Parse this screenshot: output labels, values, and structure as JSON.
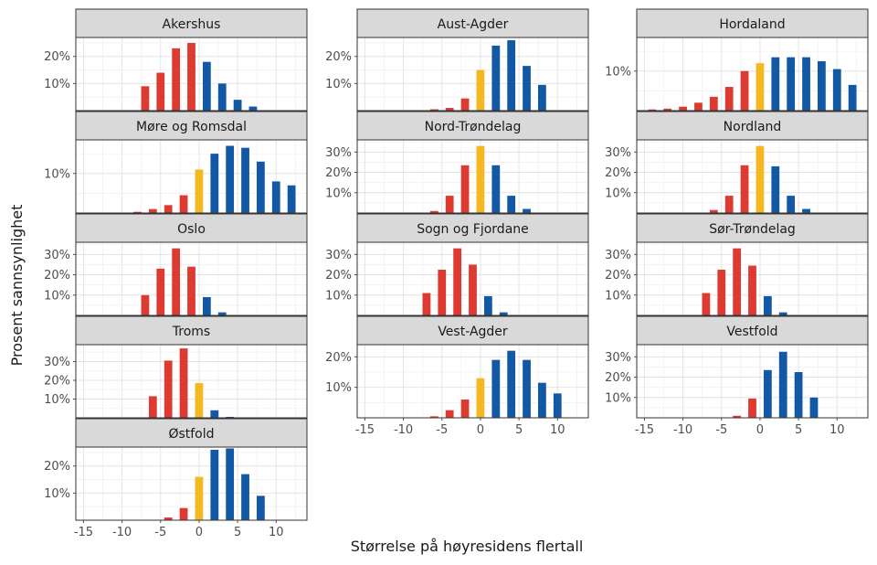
{
  "chart_data": {
    "type": "bar",
    "layout": "faceted grid, 3 columns",
    "xlabel": "Størrelse på høyresidens flertall",
    "ylabel": "Prosent sannsynlighet",
    "xlim": [
      -16,
      14
    ],
    "x_ticks": [
      -15,
      -10,
      -5,
      0,
      5,
      10
    ],
    "x_tick_labels": [
      "-15",
      "-10",
      "-5",
      "0",
      "5",
      "10"
    ],
    "colors": {
      "left": "#dd3a31",
      "tie": "#f4b821",
      "right": "#1258a5"
    },
    "panels": [
      {
        "title": "Akershus",
        "ylim": [
          0,
          27
        ],
        "y_ticks": [
          10,
          20
        ],
        "y_tick_labels": [
          "10%",
          "20%"
        ],
        "x": [
          -7,
          -5,
          -3,
          -1,
          1,
          3,
          5,
          7
        ],
        "values": [
          9,
          14,
          23,
          25,
          18,
          10,
          4,
          1.5
        ]
      },
      {
        "title": "Aust-Agder",
        "ylim": [
          0,
          27
        ],
        "y_ticks": [
          10,
          20
        ],
        "y_tick_labels": [
          "10%",
          "20%"
        ],
        "x": [
          -6,
          -4,
          -2,
          0,
          2,
          4,
          6,
          8
        ],
        "values": [
          0.5,
          1,
          4.5,
          15,
          24,
          26,
          16.5,
          9.5
        ]
      },
      {
        "title": "Hordaland",
        "ylim": [
          0,
          18.5
        ],
        "y_ticks": [
          10
        ],
        "y_tick_labels": [
          "10%"
        ],
        "x": [
          -14,
          -12,
          -10,
          -8,
          -6,
          -4,
          -2,
          0,
          2,
          4,
          6,
          8,
          10,
          12
        ],
        "values": [
          0.3,
          0.5,
          1,
          2,
          3.5,
          6,
          10,
          12,
          13.5,
          13.5,
          13.5,
          12.5,
          10.5,
          6.5
        ]
      },
      {
        "title": "Møre og Romsdal",
        "ylim": [
          0,
          18.5
        ],
        "y_ticks": [
          10
        ],
        "y_tick_labels": [
          "10%"
        ],
        "x": [
          -8,
          -6,
          -4,
          -2,
          0,
          2,
          4,
          6,
          8,
          10,
          12
        ],
        "values": [
          0.3,
          1,
          2,
          4.5,
          11,
          15,
          17,
          16.5,
          13,
          8,
          7
        ]
      },
      {
        "title": "Nord-Trøndelag",
        "ylim": [
          0,
          36
        ],
        "y_ticks": [
          10,
          20,
          30
        ],
        "y_tick_labels": [
          "10%",
          "20%",
          "30%"
        ],
        "x": [
          -6,
          -4,
          -2,
          0,
          2,
          4,
          6
        ],
        "values": [
          1,
          8.5,
          23.5,
          33,
          23.5,
          8.5,
          2
        ]
      },
      {
        "title": "Nordland",
        "ylim": [
          0,
          36
        ],
        "y_ticks": [
          10,
          20,
          30
        ],
        "y_tick_labels": [
          "10%",
          "20%",
          "30%"
        ],
        "x": [
          -6,
          -4,
          -2,
          0,
          2,
          4,
          6
        ],
        "values": [
          1.5,
          8.5,
          23.5,
          33,
          23,
          8.5,
          2
        ]
      },
      {
        "title": "Oslo",
        "ylim": [
          0,
          36
        ],
        "y_ticks": [
          10,
          20,
          30
        ],
        "y_tick_labels": [
          "10%",
          "20%",
          "30%"
        ],
        "x": [
          -7,
          -5,
          -3,
          -1,
          1,
          3
        ],
        "values": [
          10,
          23,
          33,
          24,
          9,
          1.5
        ]
      },
      {
        "title": "Sogn og Fjordane",
        "ylim": [
          0,
          36
        ],
        "y_ticks": [
          10,
          20,
          30
        ],
        "y_tick_labels": [
          "10%",
          "20%",
          "30%"
        ],
        "x": [
          -7,
          -5,
          -3,
          -1,
          1,
          3
        ],
        "values": [
          11,
          22.5,
          33,
          25,
          9.5,
          1.5
        ]
      },
      {
        "title": "Sør-Trøndelag",
        "ylim": [
          0,
          36
        ],
        "y_ticks": [
          10,
          20,
          30
        ],
        "y_tick_labels": [
          "10%",
          "20%",
          "30%"
        ],
        "x": [
          -7,
          -5,
          -3,
          -1,
          1,
          3
        ],
        "values": [
          11,
          22.5,
          33,
          24.5,
          9.5,
          1.5
        ]
      },
      {
        "title": "Troms",
        "ylim": [
          0,
          39
        ],
        "y_ticks": [
          10,
          20,
          30
        ],
        "y_tick_labels": [
          "10%",
          "20%",
          "30%"
        ],
        "x": [
          -6,
          -4,
          -2,
          0,
          2,
          4
        ],
        "values": [
          11.5,
          30.5,
          37,
          18.5,
          4,
          0.5
        ]
      },
      {
        "title": "Vest-Agder",
        "ylim": [
          0,
          24
        ],
        "y_ticks": [
          10,
          20
        ],
        "y_tick_labels": [
          "10%",
          "20%"
        ],
        "x": [
          -6,
          -4,
          -2,
          0,
          2,
          4,
          6,
          8,
          10
        ],
        "values": [
          0.5,
          2.5,
          6,
          13,
          19,
          22,
          19,
          11.5,
          8
        ]
      },
      {
        "title": "Vestfold",
        "ylim": [
          0,
          36
        ],
        "y_ticks": [
          10,
          20,
          30
        ],
        "y_tick_labels": [
          "10%",
          "20%",
          "30%"
        ],
        "x": [
          -3,
          -1,
          1,
          3,
          5,
          7
        ],
        "values": [
          1,
          9.5,
          23.5,
          32.5,
          22.5,
          10
        ]
      },
      {
        "title": "Østfold",
        "ylim": [
          0,
          27
        ],
        "y_ticks": [
          10,
          20
        ],
        "y_tick_labels": [
          "10%",
          "20%"
        ],
        "x": [
          -4,
          -2,
          0,
          2,
          4,
          6,
          8
        ],
        "values": [
          1,
          4.5,
          16,
          26,
          26.5,
          17,
          9
        ]
      }
    ]
  }
}
